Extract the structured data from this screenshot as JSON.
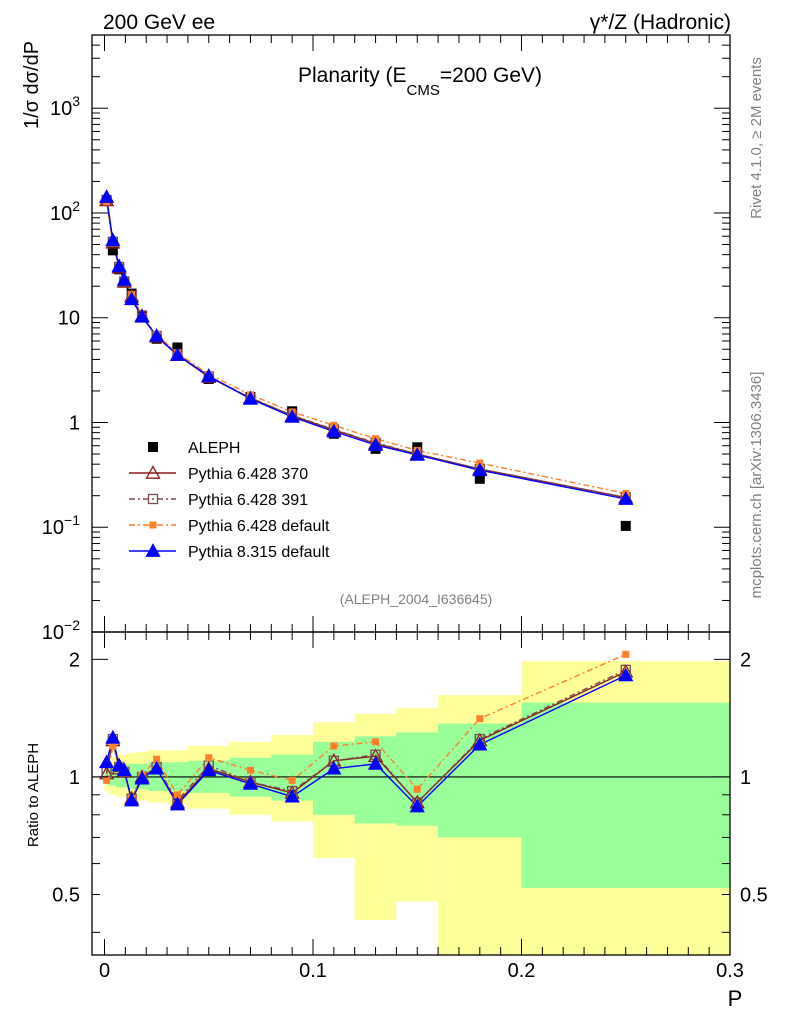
{
  "header": {
    "left": "200 GeV ee",
    "right": "γ*/Z (Hadronic)"
  },
  "side": {
    "rivet": "Rivet 4.1.0, ≥ 2M events",
    "mcplots": "mcplots.cern.ch [arXiv:1306.3436]"
  },
  "chart_data": [
    {
      "type": "scatter",
      "title_main": "Planarity (E",
      "title_sub": "CMS",
      "title_tail": "=200 GeV)",
      "ylabel": "1/σ  dσ/dP",
      "yscale": "log",
      "ylim": [
        0.01,
        5000
      ],
      "xlim": [
        -0.006,
        0.3
      ],
      "ytick_labels": [
        {
          "v": 0.01,
          "base": "10",
          "exp": "−2"
        },
        {
          "v": 0.1,
          "base": "10",
          "exp": "−1"
        },
        {
          "v": 1,
          "base": "1",
          "exp": ""
        },
        {
          "v": 10,
          "base": "10",
          "exp": ""
        },
        {
          "v": 100,
          "base": "10",
          "exp": "2"
        },
        {
          "v": 1000,
          "base": "10",
          "exp": "3"
        }
      ],
      "watermark": "(ALEPH_2004_I636645)",
      "x": [
        0.001,
        0.004,
        0.007,
        0.0095,
        0.013,
        0.018,
        0.025,
        0.035,
        0.05,
        0.07,
        0.09,
        0.11,
        0.13,
        0.15,
        0.18,
        0.25
      ],
      "data": {
        "name": "ALEPH",
        "values": [
          130,
          44,
          29,
          22,
          17,
          10.3,
          6.3,
          5.2,
          2.6,
          1.75,
          1.28,
          0.78,
          0.56,
          0.58,
          0.29,
          0.103
        ],
        "color": "#000000"
      },
      "series": [
        {
          "name": "Pythia 6.428 370",
          "color": "#8b1a1a",
          "marker": "triangle-open",
          "dash": "",
          "values": [
            132,
            52,
            30,
            22,
            16,
            10.4,
            6.6,
            4.4,
            2.72,
            1.71,
            1.16,
            0.85,
            0.63,
            0.5,
            0.36,
            0.192
          ]
        },
        {
          "name": "Pythia 6.428 391",
          "color": "#7a4a4a",
          "marker": "square-open",
          "dash": "6,3,2,3",
          "values": [
            133,
            53,
            30.5,
            22.2,
            16.2,
            10.5,
            6.7,
            4.5,
            2.75,
            1.72,
            1.17,
            0.86,
            0.64,
            0.5,
            0.36,
            0.193
          ]
        },
        {
          "name": "Pythia 6.428 default",
          "color": "#ff7f2a",
          "marker": "square-filled",
          "dash": "6,3,2,3",
          "values": [
            128,
            53,
            31,
            22.8,
            16.6,
            10.3,
            6.9,
            4.6,
            2.88,
            1.84,
            1.26,
            0.94,
            0.7,
            0.54,
            0.41,
            0.21
          ]
        },
        {
          "name": "Pythia 8.315 default",
          "color": "#0000ff",
          "marker": "triangle-filled",
          "dash": "",
          "values": [
            142,
            55,
            31,
            23,
            15,
            10.2,
            6.7,
            4.4,
            2.78,
            1.68,
            1.13,
            0.82,
            0.61,
            0.49,
            0.35,
            0.186
          ]
        }
      ]
    },
    {
      "type": "scatter",
      "ylabel": "Ratio to ALEPH",
      "xlabel": "P",
      "yscale": "log",
      "ylim": [
        0.35,
        2.35
      ],
      "xlim": [
        -0.006,
        0.3
      ],
      "ytick_labels": [
        "0.5",
        "1",
        "2"
      ],
      "ytick_values": [
        0.5,
        1,
        2
      ],
      "xtick_labels": [
        "0",
        "0.1",
        "0.2",
        "0.3"
      ],
      "xtick_values": [
        0,
        0.1,
        0.2,
        0.3
      ],
      "bands": [
        {
          "x0": 0.0,
          "x1": 0.002,
          "g": [
            0.96,
            1.05
          ],
          "y": [
            0.92,
            1.1
          ]
        },
        {
          "x0": 0.002,
          "x1": 0.0055,
          "g": [
            0.95,
            1.06
          ],
          "y": [
            0.9,
            1.12
          ]
        },
        {
          "x0": 0.0055,
          "x1": 0.0085,
          "g": [
            0.94,
            1.07
          ],
          "y": [
            0.89,
            1.14
          ]
        },
        {
          "x0": 0.0085,
          "x1": 0.011,
          "g": [
            0.94,
            1.07
          ],
          "y": [
            0.89,
            1.14
          ]
        },
        {
          "x0": 0.011,
          "x1": 0.015,
          "g": [
            0.93,
            1.08
          ],
          "y": [
            0.88,
            1.15
          ]
        },
        {
          "x0": 0.015,
          "x1": 0.021,
          "g": [
            0.93,
            1.08
          ],
          "y": [
            0.87,
            1.16
          ]
        },
        {
          "x0": 0.021,
          "x1": 0.03,
          "g": [
            0.92,
            1.09
          ],
          "y": [
            0.86,
            1.17
          ]
        },
        {
          "x0": 0.03,
          "x1": 0.04,
          "g": [
            0.92,
            1.09
          ],
          "y": [
            0.85,
            1.17
          ]
        },
        {
          "x0": 0.04,
          "x1": 0.06,
          "g": [
            0.91,
            1.1
          ],
          "y": [
            0.83,
            1.2
          ]
        },
        {
          "x0": 0.06,
          "x1": 0.08,
          "g": [
            0.89,
            1.12
          ],
          "y": [
            0.8,
            1.23
          ]
        },
        {
          "x0": 0.08,
          "x1": 0.1,
          "g": [
            0.87,
            1.14
          ],
          "y": [
            0.77,
            1.28
          ]
        },
        {
          "x0": 0.1,
          "x1": 0.12,
          "g": [
            0.8,
            1.23
          ],
          "y": [
            0.62,
            1.38
          ]
        },
        {
          "x0": 0.12,
          "x1": 0.14,
          "g": [
            0.76,
            1.27
          ],
          "y": [
            0.43,
            1.45
          ]
        },
        {
          "x0": 0.14,
          "x1": 0.16,
          "g": [
            0.75,
            1.3
          ],
          "y": [
            0.48,
            1.5
          ]
        },
        {
          "x0": 0.16,
          "x1": 0.2,
          "g": [
            0.7,
            1.37
          ],
          "y": [
            0.3,
            1.62
          ]
        },
        {
          "x0": 0.2,
          "x1": 0.3,
          "g": [
            0.52,
            1.55
          ],
          "y": [
            0.3,
            1.98
          ]
        }
      ],
      "series": [
        {
          "name": "Pythia 6.428 370",
          "values": [
            1.02,
            1.24,
            1.05,
            1.03,
            0.88,
            1.0,
            1.05,
            0.86,
            1.05,
            0.97,
            0.91,
            1.1,
            1.13,
            0.86,
            1.24,
            1.86
          ]
        },
        {
          "name": "Pythia 6.428 391",
          "values": [
            1.03,
            1.25,
            1.06,
            1.03,
            0.88,
            1.0,
            1.06,
            0.87,
            1.07,
            0.97,
            0.92,
            1.1,
            1.14,
            0.86,
            1.25,
            1.88
          ]
        },
        {
          "name": "Pythia 6.428 default",
          "values": [
            0.98,
            1.2,
            1.07,
            1.04,
            0.88,
            1.01,
            1.11,
            0.9,
            1.12,
            1.04,
            0.98,
            1.2,
            1.23,
            0.93,
            1.41,
            2.06
          ]
        },
        {
          "name": "Pythia 8.315 default",
          "values": [
            1.09,
            1.26,
            1.07,
            1.04,
            0.87,
            0.99,
            1.05,
            0.85,
            1.04,
            0.96,
            0.89,
            1.05,
            1.08,
            0.84,
            1.21,
            1.82
          ]
        }
      ]
    }
  ]
}
